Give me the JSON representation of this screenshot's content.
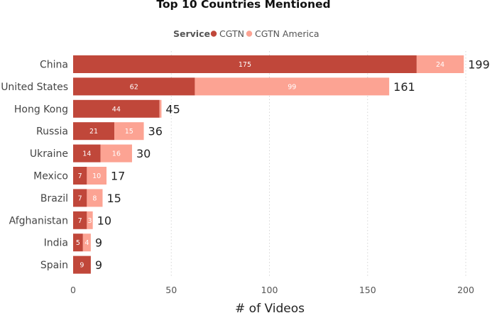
{
  "chart_data": {
    "type": "bar",
    "orientation": "horizontal",
    "stacked": true,
    "title": "Top 10 Countries Mentioned",
    "legend": {
      "title": "Service",
      "placement": "top-center",
      "entries": [
        "CGTN",
        "CGTN America"
      ]
    },
    "categories": [
      "China",
      "United States",
      "Hong Kong",
      "Russia",
      "Ukraine",
      "Mexico",
      "Brazil",
      "Afghanistan",
      "India",
      "Spain"
    ],
    "series": [
      {
        "name": "CGTN",
        "color": "#c0473a",
        "values": [
          175,
          62,
          44,
          21,
          14,
          7,
          7,
          7,
          5,
          9
        ]
      },
      {
        "name": "CGTN America",
        "color": "#fca393",
        "values": [
          24,
          99,
          1,
          15,
          16,
          10,
          8,
          3,
          4,
          0
        ]
      }
    ],
    "totals": [
      199,
      161,
      45,
      36,
      30,
      17,
      15,
      10,
      9,
      9
    ],
    "xlabel": "# of Videos",
    "ylabel": "",
    "xlim": [
      0,
      200
    ],
    "xticks": [
      0,
      50,
      100,
      150,
      200
    ],
    "grid": "vertical-dotted"
  }
}
